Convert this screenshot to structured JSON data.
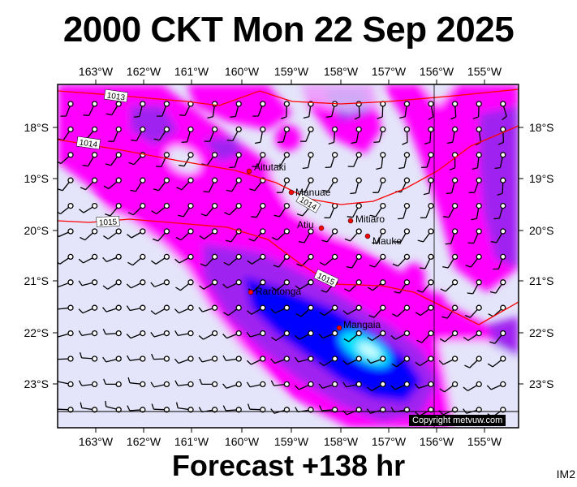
{
  "title": "2000 CKT Mon 22 Sep 2025",
  "footer": "Forecast +138 hr",
  "code": "IM2",
  "copyright": "Copyright metvuw.com",
  "lon_ticks": [
    "163°W",
    "162°W",
    "161°W",
    "160°W",
    "159°W",
    "158°W",
    "157°W",
    "156°W",
    "155°W"
  ],
  "lat_ticks": [
    "18°S",
    "19°S",
    "20°S",
    "21°S",
    "22°S",
    "23°S"
  ],
  "islands": [
    {
      "name": "Aitutaki"
    },
    {
      "name": "Manuae"
    },
    {
      "name": "Mitiaro"
    },
    {
      "name": "Atiu"
    },
    {
      "name": "Mauke"
    },
    {
      "name": "Rarotonga"
    },
    {
      "name": "Mangaia"
    }
  ],
  "isobars": [
    "1013",
    "1014",
    "1014",
    "1015",
    "1015"
  ],
  "colors": {
    "background": "#e4e4fa",
    "rain_light": "#ff00ff",
    "rain_moderate": "#a020f0",
    "rain_heavy": "#0000ff",
    "rain_very_heavy": "#00e0ff",
    "isobar": "#ff0000",
    "island": "#ff0000"
  }
}
